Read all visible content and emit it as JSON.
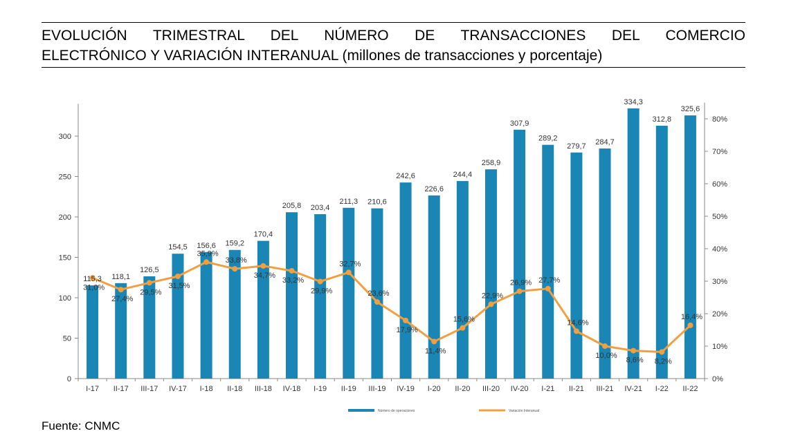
{
  "title": {
    "line1": "EVOLUCIÓN TRIMESTRAL DEL NÚMERO DE TRANSACCIONES DEL COMERCIO",
    "line2": "ELECTRÓNICO Y VARIACIÓN INTERANUAL (millones de transacciones y porcentaje)"
  },
  "source": "Fuente: CNMC",
  "colors": {
    "bars": "#1a86b5",
    "line": "#f0a040",
    "axis": "#888888"
  },
  "chart_data": {
    "type": "bar",
    "categories": [
      "I-17",
      "II-17",
      "III-17",
      "IV-17",
      "I-18",
      "II-18",
      "III-18",
      "IV-18",
      "I-19",
      "II-19",
      "III-19",
      "IV-19",
      "I-20",
      "II-20",
      "III-20",
      "IV-20",
      "I-21",
      "II-21",
      "III-21",
      "IV-21",
      "I-22",
      "II-22"
    ],
    "series": [
      {
        "name": "Número de operaciones",
        "type": "bar",
        "axis": "left",
        "values": [
          115.3,
          118.1,
          126.5,
          154.5,
          156.6,
          159.2,
          170.4,
          205.8,
          203.4,
          211.3,
          210.6,
          242.6,
          226.6,
          244.4,
          258.9,
          307.9,
          289.2,
          279.7,
          284.7,
          334.3,
          312.8,
          325.6
        ],
        "labels": [
          "115,3",
          "118,1",
          "126,5",
          "154,5",
          "156,6",
          "159,2",
          "170,4",
          "205,8",
          "203,4",
          "211,3",
          "210,6",
          "242,6",
          "226,6",
          "244,4",
          "258,9",
          "307,9",
          "289,2",
          "279,7",
          "284,7",
          "334,3",
          "312,8",
          "325,6"
        ]
      },
      {
        "name": "Variación Interanual",
        "type": "line",
        "axis": "right",
        "values": [
          31.0,
          27.4,
          29.5,
          31.5,
          35.9,
          33.8,
          34.7,
          33.2,
          29.9,
          32.7,
          23.6,
          17.9,
          11.4,
          15.6,
          22.9,
          26.9,
          27.7,
          14.6,
          10.0,
          8.6,
          8.2,
          16.4
        ],
        "labels": [
          "31,0%",
          "27,4%",
          "29,5%",
          "31,5%",
          "35,9%",
          "33,8%",
          "34,7%",
          "33,2%",
          "29,9%",
          "32,7%",
          "23,6%",
          "17,9%",
          "11,4%",
          "15,6%",
          "22,9%",
          "26,9%",
          "27,7%",
          "14,6%",
          "10,0%",
          "8,6%",
          "8,2%",
          "16,4%"
        ]
      }
    ],
    "y_left": {
      "min": 0,
      "max": 340,
      "ticks": [
        0,
        50,
        100,
        150,
        200,
        250,
        300
      ],
      "tick_labels": [
        "0",
        "50",
        "100",
        "150",
        "200",
        "250",
        "300"
      ]
    },
    "y_right": {
      "min": 0,
      "max": 85,
      "ticks": [
        0,
        10,
        20,
        30,
        40,
        50,
        60,
        70,
        80
      ],
      "tick_labels": [
        "0%",
        "10%",
        "20%",
        "30%",
        "40%",
        "50%",
        "60%",
        "70%",
        "80%"
      ]
    },
    "grid": false,
    "legend_position": "bottom"
  }
}
